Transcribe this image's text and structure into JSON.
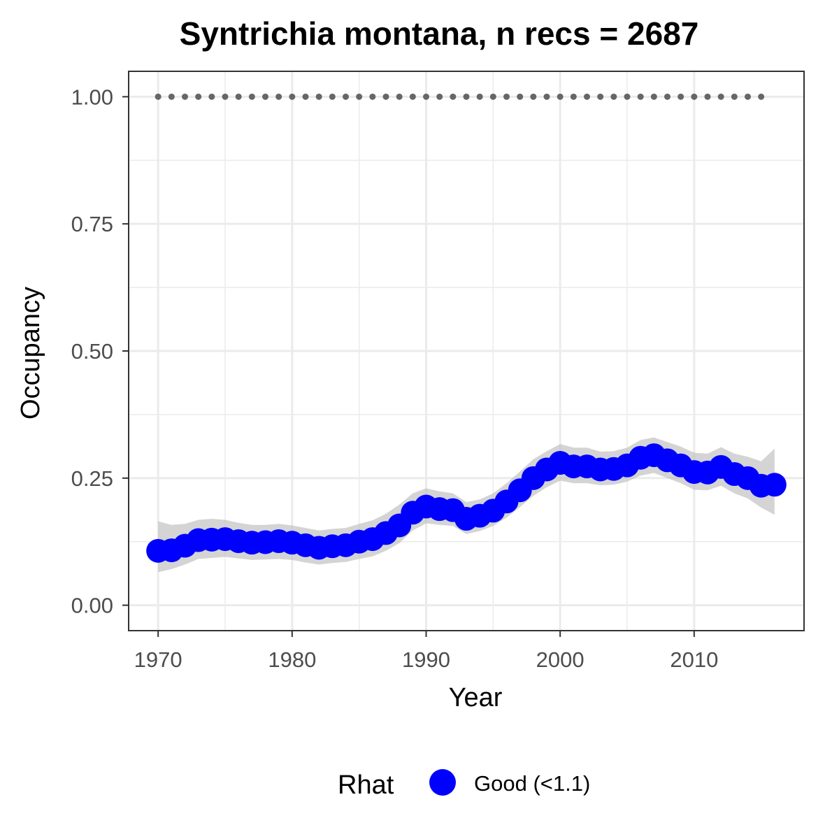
{
  "chart_data": {
    "type": "line",
    "title": "Syntrichia montana, n recs = 2687",
    "xlabel": "Year",
    "ylabel": "Occupancy",
    "xlim": [
      1967.8,
      2018.2
    ],
    "ylim": [
      -0.05,
      1.05
    ],
    "x_ticks": [
      1970,
      1980,
      1990,
      2000,
      2010
    ],
    "x_tick_labels": [
      "1970",
      "1980",
      "1990",
      "2000",
      "2010"
    ],
    "y_ticks": [
      0,
      0.25,
      0.5,
      0.75,
      1.0
    ],
    "y_tick_labels": [
      "0.00",
      "0.25",
      "0.50",
      "0.75",
      "1.00"
    ],
    "grid": true,
    "legend": {
      "title": "Rhat",
      "position": "bottom",
      "entries": [
        {
          "label": "Good (<1.1)",
          "color": "#0000ff"
        }
      ]
    },
    "colors": {
      "points": "#0000ff",
      "ribbon": "#bdbdbd",
      "reference": "#666666",
      "grid": "#ebebeb",
      "border": "#333333"
    },
    "series": [
      {
        "type": "points",
        "x": [
          1970,
          1971,
          1972,
          1973,
          1974,
          1975,
          1976,
          1977,
          1978,
          1979,
          1980,
          1981,
          1982,
          1983,
          1984,
          1985,
          1986,
          1987,
          1988,
          1989,
          1990,
          1991,
          1992,
          1993,
          1994,
          1995,
          1996,
          1997,
          1998,
          1999,
          2000,
          2001,
          2002,
          2003,
          2004,
          2005,
          2006,
          2007,
          2008,
          2009,
          2010,
          2011,
          2012,
          2013,
          2014,
          2015,
          2016
        ],
        "values": [
          0.107,
          0.108,
          0.117,
          0.128,
          0.129,
          0.13,
          0.126,
          0.123,
          0.124,
          0.126,
          0.123,
          0.118,
          0.113,
          0.116,
          0.118,
          0.125,
          0.13,
          0.142,
          0.157,
          0.182,
          0.194,
          0.189,
          0.187,
          0.17,
          0.176,
          0.186,
          0.204,
          0.226,
          0.25,
          0.267,
          0.28,
          0.273,
          0.273,
          0.267,
          0.268,
          0.275,
          0.29,
          0.295,
          0.285,
          0.275,
          0.262,
          0.261,
          0.272,
          0.258,
          0.25,
          0.235,
          0.237
        ],
        "lower": [
          0.065,
          0.071,
          0.08,
          0.091,
          0.093,
          0.095,
          0.092,
          0.089,
          0.09,
          0.091,
          0.089,
          0.084,
          0.08,
          0.083,
          0.085,
          0.091,
          0.096,
          0.107,
          0.122,
          0.147,
          0.161,
          0.158,
          0.156,
          0.14,
          0.146,
          0.156,
          0.172,
          0.193,
          0.215,
          0.232,
          0.245,
          0.24,
          0.24,
          0.236,
          0.237,
          0.243,
          0.255,
          0.26,
          0.25,
          0.24,
          0.227,
          0.226,
          0.235,
          0.22,
          0.21,
          0.192,
          0.178
        ],
        "upper": [
          0.165,
          0.158,
          0.16,
          0.168,
          0.17,
          0.168,
          0.162,
          0.158,
          0.158,
          0.16,
          0.157,
          0.152,
          0.147,
          0.15,
          0.152,
          0.16,
          0.167,
          0.18,
          0.198,
          0.22,
          0.23,
          0.224,
          0.22,
          0.203,
          0.208,
          0.22,
          0.24,
          0.263,
          0.287,
          0.303,
          0.317,
          0.31,
          0.31,
          0.302,
          0.303,
          0.31,
          0.325,
          0.33,
          0.321,
          0.312,
          0.3,
          0.298,
          0.311,
          0.298,
          0.292,
          0.283,
          0.308
        ]
      },
      {
        "type": "reference",
        "x": [
          1970,
          1971,
          1972,
          1973,
          1974,
          1975,
          1976,
          1977,
          1978,
          1979,
          1980,
          1981,
          1982,
          1983,
          1984,
          1985,
          1986,
          1987,
          1988,
          1989,
          1990,
          1991,
          1992,
          1993,
          1994,
          1995,
          1996,
          1997,
          1998,
          1999,
          2000,
          2001,
          2002,
          2003,
          2004,
          2005,
          2006,
          2007,
          2008,
          2009,
          2010,
          2011,
          2012,
          2013,
          2014,
          2015
        ],
        "values": [
          1,
          1,
          1,
          1,
          1,
          1,
          1,
          1,
          1,
          1,
          1,
          1,
          1,
          1,
          1,
          1,
          1,
          1,
          1,
          1,
          1,
          1,
          1,
          1,
          1,
          1,
          1,
          1,
          1,
          1,
          1,
          1,
          1,
          1,
          1,
          1,
          1,
          1,
          1,
          1,
          1,
          1,
          1,
          1,
          1,
          1
        ]
      }
    ]
  }
}
